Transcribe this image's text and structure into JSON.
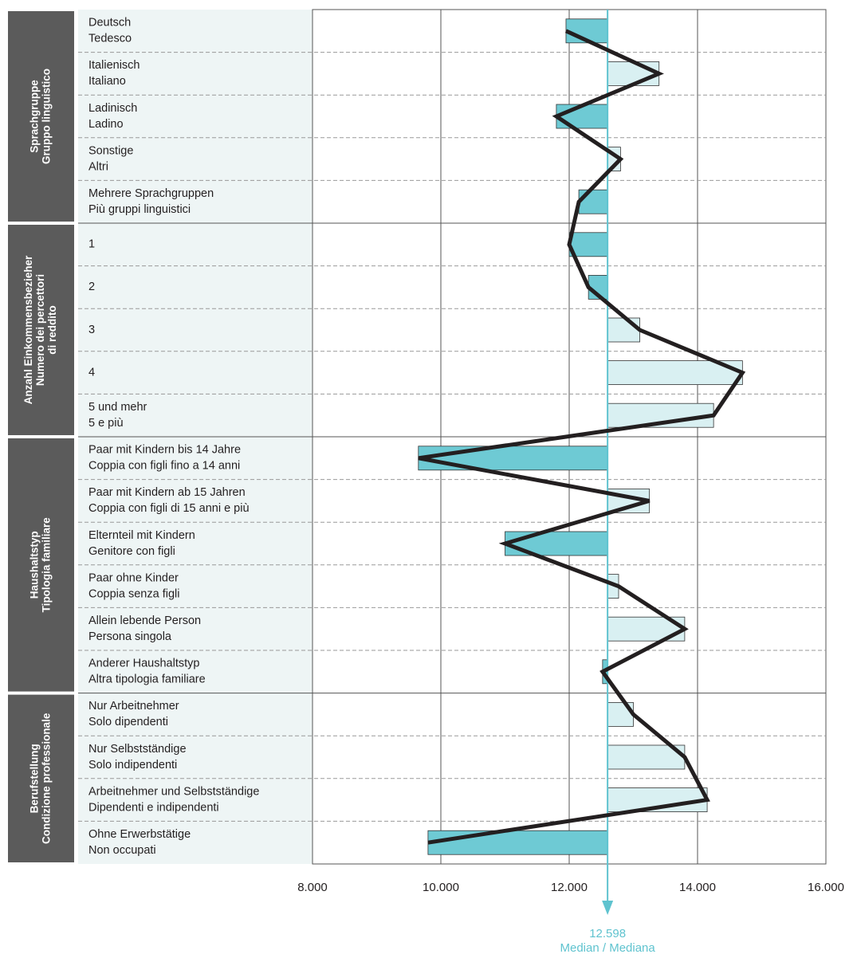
{
  "chart_data": {
    "type": "bar",
    "orientation": "horizontal",
    "groups": [
      {
        "label": [
          "Sprachgruppe",
          "Gruppo linguistico"
        ],
        "categories": [
          [
            "Deutsch",
            "Tedesco"
          ],
          [
            "Italienisch",
            "Italiano"
          ],
          [
            "Ladinisch",
            "Ladino"
          ],
          [
            "Sonstige",
            "Altri"
          ],
          [
            "Mehrere Sprachgruppen",
            "Più gruppi linguistici"
          ]
        ],
        "values": [
          11950,
          13400,
          11800,
          12800,
          12150
        ]
      },
      {
        "label": [
          "Anzahl Einkommensbezieher",
          "Numero dei percettori",
          "di reddito"
        ],
        "categories": [
          [
            "1"
          ],
          [
            "2"
          ],
          [
            "3"
          ],
          [
            "4"
          ],
          [
            "5 und mehr",
            "5 e più"
          ]
        ],
        "values": [
          12000,
          12300,
          13100,
          14700,
          14250
        ]
      },
      {
        "label": [
          "Haushaltstyp",
          "Tipologia familiare"
        ],
        "categories": [
          [
            "Paar mit Kindern bis 14 Jahre",
            "Coppia con figli fino a 14 anni"
          ],
          [
            "Paar mit Kindern ab 15 Jahren",
            "Coppia con figli di 15 anni e più"
          ],
          [
            "Elternteil mit Kindern",
            "Genitore con figli"
          ],
          [
            "Paar ohne Kinder",
            "Coppia senza figli"
          ],
          [
            "Allein lebende Person",
            "Persona singola"
          ],
          [
            "Anderer Haushaltstyp",
            "Altra tipologia familiare"
          ]
        ],
        "values": [
          9650,
          13250,
          11000,
          12770,
          13800,
          12520
        ]
      },
      {
        "label": [
          "Berufstellung",
          "Condizione professionale"
        ],
        "categories": [
          [
            "Nur Arbeitnehmer",
            "Solo dipendenti"
          ],
          [
            "Nur Selbstständige",
            "Solo indipendenti"
          ],
          [
            "Arbeitnehmer und Selbstständige",
            "Dipendenti e indipendenti"
          ],
          [
            "Ohne Erwerbstätige",
            "Non occupati"
          ]
        ],
        "values": [
          13000,
          13800,
          14150,
          9800
        ]
      }
    ],
    "median": {
      "value": 12598,
      "label": "12.598",
      "text": "Median / Mediana"
    },
    "xlim": [
      8000,
      16000
    ],
    "xticks": [
      {
        "value": 8000,
        "label": "8.000"
      },
      {
        "value": 10000,
        "label": "10.000"
      },
      {
        "value": 12000,
        "label": "12.000"
      },
      {
        "value": 14000,
        "label": "14.000"
      },
      {
        "value": 16000,
        "label": "16.000"
      }
    ],
    "grid": true,
    "below_color": "#6ecad4",
    "above_color": "#d9f0f2",
    "line_color": "#231f20",
    "median_color": "#5fc3cf"
  }
}
